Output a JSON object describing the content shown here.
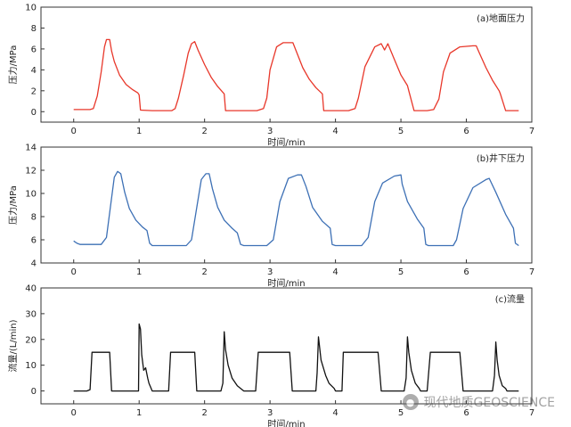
{
  "chart_data": [
    {
      "type": "line",
      "title": "(a)地面压力",
      "xlabel": "时间/min",
      "ylabel": "压力/MPa",
      "xlim": [
        -0.5,
        7
      ],
      "ylim": [
        -1,
        10
      ],
      "x_ticks": [
        0,
        1,
        2,
        3,
        4,
        5,
        6,
        7
      ],
      "y_ticks": [
        0,
        2,
        4,
        6,
        8,
        10
      ],
      "color": "#e8372a",
      "grid": false,
      "series": [
        {
          "x": [
            0,
            0.25,
            0.3,
            0.36,
            0.42,
            0.47,
            0.5,
            0.55,
            0.58,
            0.62,
            0.7,
            0.8,
            0.9,
            0.98,
            1.0,
            1.02,
            1.2,
            1.4,
            1.5,
            1.55,
            1.6,
            1.68,
            1.75,
            1.8,
            1.85,
            1.9,
            2.0,
            2.1,
            2.2,
            2.3,
            2.32,
            2.4,
            2.6,
            2.8,
            2.9,
            2.95,
            3.0,
            3.1,
            3.2,
            3.3,
            3.35,
            3.4,
            3.5,
            3.6,
            3.7,
            3.8,
            3.82,
            3.9,
            4.1,
            4.2,
            4.3,
            4.35,
            4.45,
            4.6,
            4.7,
            4.75,
            4.8,
            4.9,
            5.0,
            5.1,
            5.12,
            5.2,
            5.4,
            5.5,
            5.58,
            5.65,
            5.75,
            5.9,
            6.1,
            6.15,
            6.2,
            6.3,
            6.4,
            6.5,
            6.52,
            6.6,
            6.8
          ],
          "y": [
            0.2,
            0.2,
            0.3,
            1.5,
            3.8,
            6.2,
            6.9,
            6.9,
            5.8,
            4.8,
            3.5,
            2.6,
            2.1,
            1.8,
            1.6,
            0.15,
            0.1,
            0.1,
            0.1,
            0.3,
            1.3,
            3.5,
            5.6,
            6.5,
            6.7,
            5.9,
            4.5,
            3.3,
            2.4,
            1.7,
            0.1,
            0.1,
            0.1,
            0.1,
            0.3,
            1.3,
            4.0,
            6.2,
            6.6,
            6.6,
            6.6,
            5.8,
            4.2,
            3.1,
            2.3,
            1.7,
            0.1,
            0.1,
            0.1,
            0.1,
            0.3,
            1.3,
            4.3,
            6.2,
            6.5,
            5.9,
            6.5,
            5.0,
            3.5,
            2.5,
            2.0,
            0.1,
            0.1,
            0.2,
            1.2,
            3.8,
            5.6,
            6.2,
            6.3,
            6.3,
            5.6,
            4.2,
            3.0,
            2.0,
            1.7,
            0.1,
            0.1
          ]
        }
      ]
    },
    {
      "type": "line",
      "title": "(b)井下压力",
      "xlabel": "时间/min",
      "ylabel": "压力/MPa",
      "xlim": [
        -0.5,
        7
      ],
      "ylim": [
        4,
        14
      ],
      "x_ticks": [
        0,
        1,
        2,
        3,
        4,
        5,
        6,
        7
      ],
      "y_ticks": [
        4,
        6,
        8,
        10,
        12,
        14
      ],
      "color": "#3d70b5",
      "grid": false,
      "series": [
        {
          "x": [
            0,
            0.05,
            0.1,
            0.42,
            0.5,
            0.56,
            0.62,
            0.67,
            0.72,
            0.78,
            0.85,
            0.95,
            1.05,
            1.12,
            1.16,
            1.2,
            1.5,
            1.72,
            1.8,
            1.88,
            1.95,
            2.02,
            2.07,
            2.12,
            2.2,
            2.3,
            2.42,
            2.5,
            2.55,
            2.6,
            2.95,
            3.05,
            3.15,
            3.28,
            3.42,
            3.48,
            3.55,
            3.65,
            3.8,
            3.92,
            3.95,
            4.0,
            4.4,
            4.5,
            4.6,
            4.72,
            4.9,
            5.0,
            5.02,
            5.1,
            5.25,
            5.35,
            5.38,
            5.42,
            5.8,
            5.85,
            5.95,
            6.1,
            6.3,
            6.35,
            6.45,
            6.6,
            6.72,
            6.75,
            6.8
          ],
          "y": [
            5.9,
            5.7,
            5.6,
            5.6,
            6.2,
            8.8,
            11.4,
            11.9,
            11.7,
            10.1,
            8.7,
            7.7,
            7.1,
            6.8,
            5.7,
            5.5,
            5.5,
            5.5,
            6.0,
            8.8,
            11.2,
            11.7,
            11.7,
            10.4,
            8.8,
            7.7,
            7.0,
            6.6,
            5.6,
            5.5,
            5.5,
            6.0,
            9.3,
            11.3,
            11.6,
            11.6,
            10.6,
            8.8,
            7.6,
            7.0,
            5.6,
            5.5,
            5.5,
            6.2,
            9.3,
            10.9,
            11.5,
            11.6,
            10.8,
            9.3,
            7.8,
            7.0,
            5.6,
            5.5,
            5.5,
            6.0,
            8.7,
            10.5,
            11.2,
            11.3,
            10.1,
            8.2,
            7.0,
            5.7,
            5.5
          ]
        }
      ]
    },
    {
      "type": "line",
      "title": "(c)流量",
      "xlabel": "时间/min",
      "ylabel": "流量/(L/min)",
      "xlim": [
        -0.5,
        7
      ],
      "ylim": [
        -5,
        40
      ],
      "x_ticks": [
        0,
        1,
        2,
        3,
        4,
        5,
        6,
        7
      ],
      "y_ticks": [
        0,
        10,
        20,
        30,
        40
      ],
      "color": "#111111",
      "grid": false,
      "series": [
        {
          "x": [
            0,
            0.2,
            0.25,
            0.28,
            0.55,
            0.58,
            0.95,
            0.99,
            1.0,
            1.02,
            1.04,
            1.07,
            1.1,
            1.13,
            1.15,
            1.2,
            1.45,
            1.48,
            1.85,
            1.88,
            2.25,
            2.28,
            2.3,
            2.32,
            2.36,
            2.42,
            2.5,
            2.55,
            2.6,
            2.78,
            2.82,
            3.3,
            3.34,
            3.7,
            3.72,
            3.74,
            3.78,
            3.85,
            3.9,
            3.98,
            4.0,
            4.1,
            4.12,
            4.65,
            4.7,
            5.05,
            5.08,
            5.1,
            5.12,
            5.16,
            5.22,
            5.28,
            5.3,
            5.4,
            5.45,
            5.9,
            5.95,
            6.4,
            6.43,
            6.45,
            6.47,
            6.5,
            6.55,
            6.6,
            6.62,
            6.75,
            6.8
          ],
          "y": [
            0,
            0,
            0.5,
            15,
            15,
            0,
            0,
            0,
            26,
            24,
            14,
            8,
            9,
            5,
            3,
            0,
            0,
            15,
            15,
            0,
            0,
            3,
            23,
            16,
            10,
            5,
            2,
            1,
            0,
            0,
            15,
            15,
            0,
            0,
            7,
            21,
            12,
            6,
            3,
            1,
            0,
            0,
            15,
            15,
            0,
            0,
            5,
            21,
            15,
            8,
            3,
            1,
            0,
            0,
            15,
            15,
            0,
            0,
            6,
            19,
            12,
            6,
            2,
            1,
            0,
            0,
            0
          ]
        }
      ]
    }
  ],
  "watermark": {
    "icon": "wechat-icon",
    "text": "现代地质GEOSCIENCE"
  }
}
